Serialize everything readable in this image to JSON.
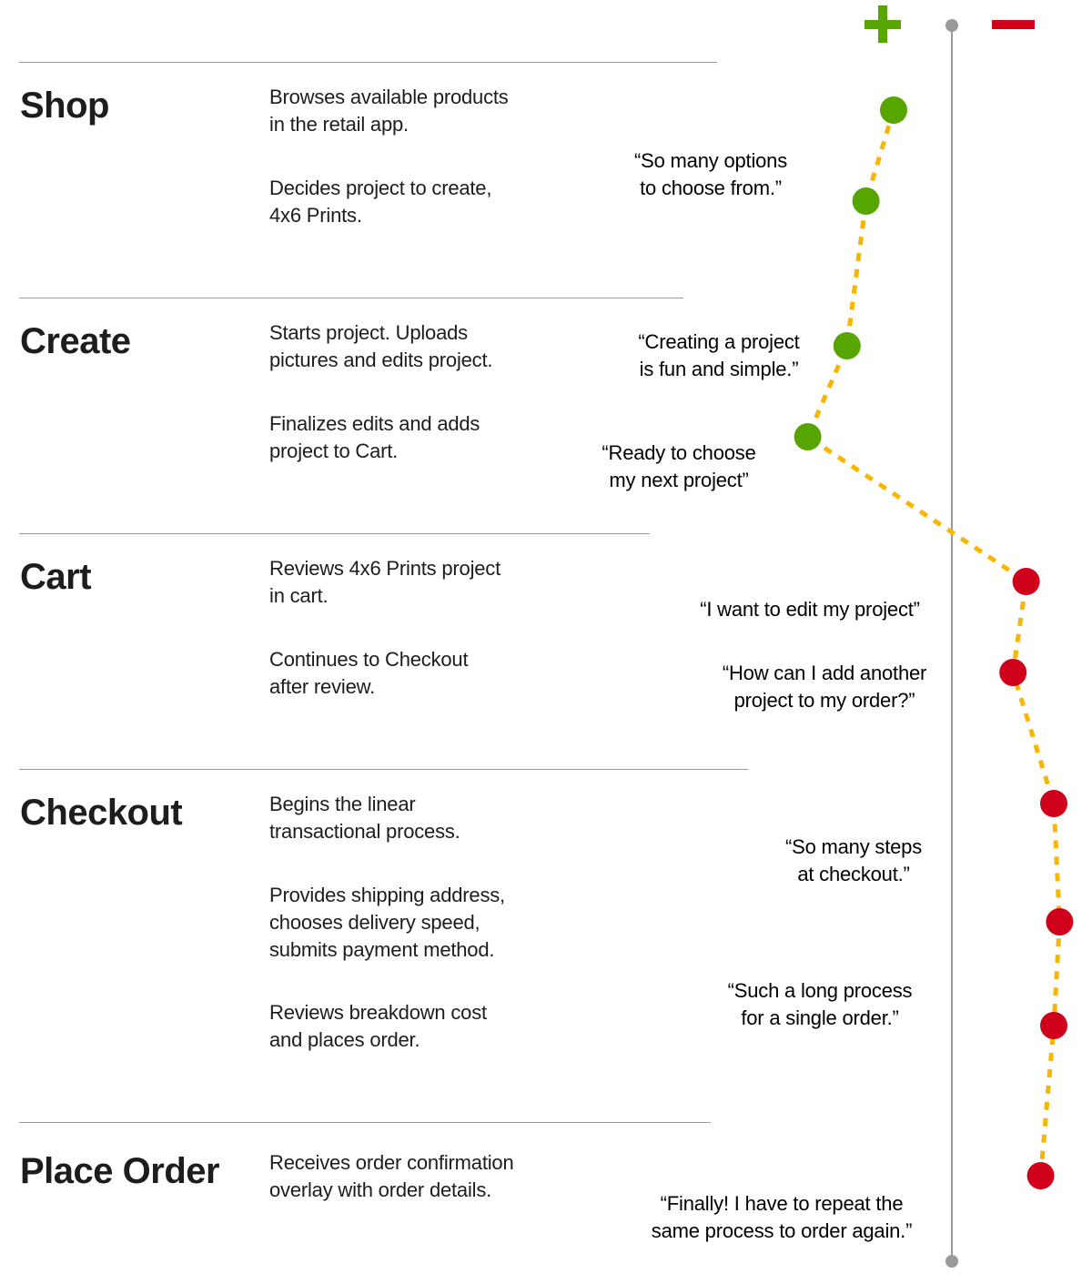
{
  "colors": {
    "positive": "#56a500",
    "negative": "#d0021b",
    "path": "#f8b600",
    "axis": "#9a9a9a"
  },
  "legend": {
    "positive_icon": "plus-icon",
    "negative_icon": "minus-icon"
  },
  "stages": [
    {
      "title": "Shop",
      "steps": [
        "Browses available products\nin the retail app.",
        "Decides project to create,\n4x6 Prints."
      ]
    },
    {
      "title": "Create",
      "steps": [
        "Starts project. Uploads\npictures and edits project.",
        "Finalizes edits and adds\nproject to Cart."
      ]
    },
    {
      "title": "Cart",
      "steps": [
        "Reviews 4x6 Prints project\nin cart.",
        "Continues to Checkout\nafter review."
      ]
    },
    {
      "title": "Checkout",
      "steps": [
        "Begins the linear\ntransactional process.",
        "Provides shipping address,\nchooses delivery speed,\nsubmits payment method.",
        "Reviews breakdown cost\nand places order."
      ]
    },
    {
      "title": "Place Order",
      "steps": [
        "Receives order confirmation\noverlay with order details."
      ]
    }
  ],
  "quotes": [
    "“So many options\nto choose from.”",
    "“Creating a project\nis fun and simple.”",
    "“Ready to choose\nmy next project”",
    "“I want to edit my project”",
    "“How can I add another\nproject to my order?”",
    "“So many steps\nat checkout.”",
    "“Such a long process\nfor a single order.”",
    "“Finally! I have to repeat the\nsame process to order again.”"
  ],
  "sentiment": [
    0.4,
    0.59,
    0.72,
    0.99,
    -0.51,
    -0.42,
    -0.7,
    -0.74,
    -0.7,
    -0.61
  ]
}
